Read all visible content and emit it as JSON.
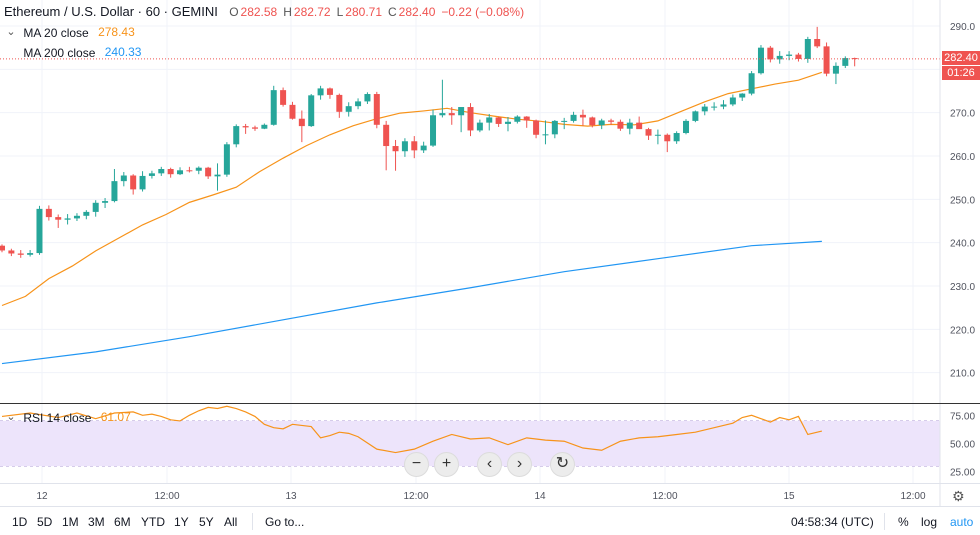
{
  "header": {
    "symbol_title": "Ethereum / U.S. Dollar · 60 · GEMINI",
    "ohlc": [
      {
        "k": "O",
        "v": "282.58"
      },
      {
        "k": "H",
        "v": "282.72"
      },
      {
        "k": "L",
        "v": "280.71"
      },
      {
        "k": "C",
        "v": "282.40"
      },
      {
        "k": "",
        "v": "−0.22 (−0.08%)"
      }
    ]
  },
  "indicators": {
    "ma20": {
      "label": "MA 20 close",
      "value": "278.43",
      "color": "#f7931a"
    },
    "ma200": {
      "label": "MA 200 close",
      "value": "240.33",
      "color": "#2196f3"
    },
    "rsi": {
      "label": "RSI 14 close",
      "value": "61.07",
      "color": "#f7931a"
    }
  },
  "price_tags": {
    "last": "282.40",
    "countdown": "01:26"
  },
  "navigation": {
    "zoom_out": "−",
    "zoom_in": "+",
    "scroll_left": "‹",
    "scroll_right": "›",
    "reset": "↻"
  },
  "bottom_bar": {
    "ranges": [
      "1D",
      "5D",
      "1M",
      "3M",
      "6M",
      "YTD",
      "1Y",
      "5Y",
      "All"
    ],
    "goto": "Go to...",
    "clock": "04:58:34 (UTC)",
    "percent": "%",
    "log": "log",
    "auto": "auto"
  },
  "colors": {
    "up": "#26a69a",
    "down": "#ef5350",
    "grid": "#f0f3fa",
    "rsi_band": "#ede4fb",
    "rsi_line": "#f7931a"
  },
  "chart_data": {
    "type": "candlestick",
    "x_ticks": [
      "12",
      "12:00",
      "13",
      "12:00",
      "14",
      "12:00",
      "15",
      "12:00"
    ],
    "y_ticks": [
      210,
      220,
      230,
      240,
      250,
      260,
      270,
      280,
      290
    ],
    "ylim": [
      203,
      296
    ],
    "candles": [
      [
        239.3,
        239.6,
        237.8,
        238.2
      ],
      [
        238.2,
        238.6,
        236.9,
        237.5
      ],
      [
        237.5,
        238.3,
        236.5,
        237.2
      ],
      [
        237.2,
        238.3,
        236.8,
        237.6
      ],
      [
        237.6,
        248.5,
        237.2,
        247.8
      ],
      [
        247.8,
        248.6,
        245.1,
        245.9
      ],
      [
        245.9,
        246.5,
        243.4,
        245.3
      ],
      [
        245.3,
        246.6,
        244.2,
        245.6
      ],
      [
        245.6,
        246.8,
        245.0,
        246.2
      ],
      [
        246.2,
        247.5,
        245.4,
        247.1
      ],
      [
        247.1,
        249.8,
        246.0,
        249.2
      ],
      [
        249.2,
        250.3,
        248.0,
        249.6
      ],
      [
        249.6,
        257.0,
        249.3,
        254.2
      ],
      [
        254.2,
        256.3,
        253.0,
        255.5
      ],
      [
        255.5,
        255.8,
        251.1,
        252.3
      ],
      [
        252.3,
        256.5,
        251.8,
        255.4
      ],
      [
        255.4,
        256.6,
        254.8,
        256.0
      ],
      [
        256.0,
        257.5,
        255.4,
        257.0
      ],
      [
        257.0,
        257.3,
        255.0,
        255.8
      ],
      [
        255.8,
        257.4,
        255.6,
        256.7
      ],
      [
        256.7,
        257.5,
        256.2,
        256.6
      ],
      [
        256.6,
        257.6,
        255.8,
        257.3
      ],
      [
        257.3,
        257.5,
        254.7,
        255.3
      ],
      [
        255.3,
        258.3,
        252.0,
        255.7
      ],
      [
        255.7,
        263.2,
        255.2,
        262.7
      ],
      [
        262.7,
        267.3,
        262.0,
        266.9
      ],
      [
        266.9,
        267.4,
        265.1,
        266.6
      ],
      [
        266.6,
        267.0,
        265.8,
        266.3
      ],
      [
        266.3,
        267.5,
        266.2,
        267.2
      ],
      [
        267.2,
        276.2,
        267.0,
        275.2
      ],
      [
        275.2,
        275.8,
        271.4,
        271.8
      ],
      [
        271.8,
        272.5,
        268.4,
        268.6
      ],
      [
        268.6,
        270.5,
        263.2,
        266.9
      ],
      [
        266.9,
        274.3,
        266.7,
        274.0
      ],
      [
        274.0,
        276.2,
        273.0,
        275.6
      ],
      [
        275.6,
        275.8,
        273.2,
        274.1
      ],
      [
        274.1,
        274.4,
        268.8,
        270.2
      ],
      [
        270.2,
        272.4,
        269.1,
        271.5
      ],
      [
        271.5,
        273.3,
        270.8,
        272.6
      ],
      [
        272.6,
        274.7,
        272.0,
        274.3
      ],
      [
        274.3,
        274.8,
        266.4,
        267.2
      ],
      [
        267.2,
        268.1,
        256.7,
        262.3
      ],
      [
        262.3,
        263.7,
        256.6,
        261.1
      ],
      [
        261.1,
        264.1,
        259.8,
        263.4
      ],
      [
        263.4,
        264.6,
        259.5,
        261.3
      ],
      [
        261.3,
        263.3,
        260.7,
        262.4
      ],
      [
        262.4,
        270.7,
        262.1,
        269.4
      ],
      [
        269.4,
        277.6,
        268.9,
        269.9
      ],
      [
        269.9,
        271.3,
        267.2,
        269.4
      ],
      [
        269.4,
        270.8,
        265.5,
        271.3
      ],
      [
        271.3,
        272.2,
        264.6,
        265.9
      ],
      [
        265.9,
        268.4,
        265.5,
        267.7
      ],
      [
        267.7,
        269.7,
        265.9,
        268.9
      ],
      [
        268.9,
        269.1,
        266.7,
        267.4
      ],
      [
        267.4,
        269.0,
        265.7,
        267.9
      ],
      [
        267.9,
        269.4,
        267.5,
        269.1
      ],
      [
        269.1,
        269.2,
        266.5,
        268.2
      ],
      [
        268.2,
        268.4,
        264.1,
        264.9
      ],
      [
        264.9,
        268.2,
        262.7,
        265.0
      ],
      [
        265.0,
        268.3,
        264.1,
        268.1
      ],
      [
        268.1,
        268.8,
        266.2,
        268.1
      ],
      [
        268.1,
        270.2,
        267.7,
        269.5
      ],
      [
        269.5,
        270.7,
        267.0,
        268.9
      ],
      [
        268.9,
        269.1,
        266.6,
        267.1
      ],
      [
        267.1,
        268.6,
        266.2,
        268.2
      ],
      [
        268.2,
        268.6,
        267.2,
        267.9
      ],
      [
        267.9,
        268.4,
        265.8,
        266.3
      ],
      [
        266.3,
        268.6,
        265.0,
        267.7
      ],
      [
        267.7,
        269.1,
        266.3,
        266.2
      ],
      [
        266.2,
        266.5,
        263.7,
        264.7
      ],
      [
        264.7,
        266.1,
        262.7,
        264.9
      ],
      [
        264.9,
        265.2,
        260.9,
        263.4
      ],
      [
        263.4,
        265.7,
        262.8,
        265.3
      ],
      [
        265.3,
        268.5,
        265.0,
        268.1
      ],
      [
        268.1,
        270.5,
        267.8,
        270.3
      ],
      [
        270.3,
        272.0,
        269.4,
        271.4
      ],
      [
        271.4,
        272.4,
        270.5,
        271.4
      ],
      [
        271.4,
        272.9,
        270.8,
        271.9
      ],
      [
        271.9,
        274.2,
        271.5,
        273.5
      ],
      [
        273.5,
        274.5,
        272.7,
        274.4
      ],
      [
        274.4,
        279.6,
        274.0,
        279.1
      ],
      [
        279.1,
        285.6,
        278.8,
        285.0
      ],
      [
        285.0,
        285.4,
        281.6,
        282.3
      ],
      [
        282.3,
        284.2,
        281.3,
        283.1
      ],
      [
        283.1,
        284.2,
        282.1,
        283.4
      ],
      [
        283.4,
        283.8,
        281.8,
        282.4
      ],
      [
        282.4,
        287.5,
        281.5,
        287.0
      ],
      [
        287.0,
        289.8,
        284.9,
        285.3
      ],
      [
        285.3,
        286.2,
        278.4,
        279.0
      ],
      [
        279.0,
        281.6,
        276.6,
        280.8
      ],
      [
        280.8,
        283.0,
        280.3,
        282.6
      ],
      [
        282.6,
        282.7,
        280.7,
        282.4
      ]
    ],
    "ma20_series": [
      [
        0,
        225.5
      ],
      [
        2.5,
        227.6
      ],
      [
        5,
        231.7
      ],
      [
        7.5,
        234.6
      ],
      [
        10,
        238.1
      ],
      [
        12.5,
        241.1
      ],
      [
        15,
        244.1
      ],
      [
        17.5,
        246.5
      ],
      [
        20,
        249.3
      ],
      [
        22.5,
        251.0
      ],
      [
        25,
        252.8
      ],
      [
        27.5,
        256.4
      ],
      [
        30,
        259.5
      ],
      [
        32.5,
        262.4
      ],
      [
        35,
        264.9
      ],
      [
        37.5,
        267.0
      ],
      [
        40,
        268.6
      ],
      [
        42.5,
        269.9
      ],
      [
        45,
        270.4
      ],
      [
        47.5,
        271.0
      ],
      [
        50,
        270.0
      ],
      [
        52.5,
        269.2
      ],
      [
        55,
        268.5
      ],
      [
        57.5,
        268.0
      ],
      [
        60,
        267.3
      ],
      [
        62.5,
        266.9
      ],
      [
        65,
        267.3
      ],
      [
        67.5,
        267.2
      ],
      [
        70,
        268.1
      ],
      [
        72.5,
        270.3
      ],
      [
        75,
        272.5
      ],
      [
        77.5,
        274.4
      ],
      [
        80,
        275.5
      ],
      [
        82.5,
        276.6
      ],
      [
        85,
        277.5
      ],
      [
        87.5,
        279.3
      ]
    ],
    "ma200_series": [
      [
        0,
        212.1
      ],
      [
        10,
        214.8
      ],
      [
        20,
        218.3
      ],
      [
        30,
        222.2
      ],
      [
        40,
        226.1
      ],
      [
        50,
        229.6
      ],
      [
        60,
        233.3
      ],
      [
        70,
        236.3
      ],
      [
        80,
        239.3
      ],
      [
        87.5,
        240.3
      ]
    ],
    "rsi_ticks": [
      25,
      50,
      75
    ],
    "rsi_band": [
      30,
      70
    ],
    "rsi_series": [
      [
        0,
        74
      ],
      [
        3,
        77
      ],
      [
        6,
        73
      ],
      [
        8,
        77
      ],
      [
        10,
        72
      ],
      [
        12,
        77
      ],
      [
        14,
        78
      ],
      [
        15,
        75
      ],
      [
        16,
        76
      ],
      [
        17,
        74
      ],
      [
        18,
        71
      ],
      [
        19,
        70
      ],
      [
        20,
        75
      ],
      [
        21,
        79
      ],
      [
        22,
        82
      ],
      [
        23,
        81
      ],
      [
        24,
        83
      ],
      [
        25,
        81
      ],
      [
        26,
        78
      ],
      [
        27,
        74
      ],
      [
        28,
        67
      ],
      [
        29,
        64
      ],
      [
        30,
        63
      ],
      [
        31,
        67
      ],
      [
        32,
        66
      ],
      [
        33,
        65
      ],
      [
        34,
        55
      ],
      [
        35,
        57
      ],
      [
        36,
        60
      ],
      [
        37,
        59
      ],
      [
        38,
        56
      ],
      [
        40,
        45
      ],
      [
        42,
        42
      ],
      [
        44,
        45
      ],
      [
        46,
        52
      ],
      [
        48,
        58
      ],
      [
        50,
        54
      ],
      [
        52,
        55
      ],
      [
        54,
        49
      ],
      [
        56,
        55
      ],
      [
        58,
        53
      ],
      [
        60,
        52
      ],
      [
        62,
        46
      ],
      [
        64,
        44
      ],
      [
        66,
        52
      ],
      [
        68,
        55
      ],
      [
        70,
        56
      ],
      [
        72,
        58
      ],
      [
        74,
        60
      ],
      [
        76,
        64
      ],
      [
        78,
        68
      ],
      [
        79,
        73
      ],
      [
        80,
        75
      ],
      [
        81,
        72
      ],
      [
        82,
        69
      ],
      [
        83,
        73
      ],
      [
        84,
        71
      ],
      [
        85,
        74
      ],
      [
        86,
        58
      ],
      [
        87,
        60
      ],
      [
        87.5,
        61
      ]
    ]
  }
}
